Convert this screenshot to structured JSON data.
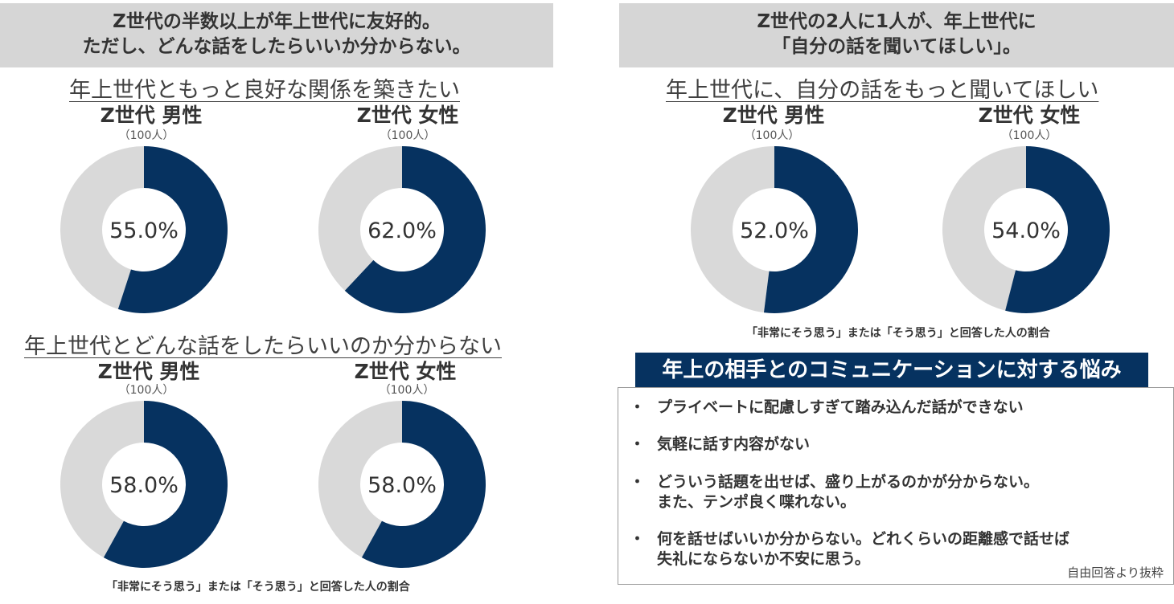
{
  "left": {
    "header": [
      "Z世代の半数以上が年上世代に友好的。",
      "ただし、どんな話をしたらいいか分からない。"
    ],
    "section1_title": "年上世代ともっと良好な関係を築きたい",
    "section2_title": "年上世代とどんな話をしたらいいのか分からない",
    "note": "「非常にそう思う」または「そう思う」と回答した人の割合"
  },
  "right": {
    "header": [
      "Z世代の2人に1人が、年上世代に",
      "「自分の話を聞いてほしい」。"
    ],
    "section_title": "年上世代に、自分の話をもっと聞いてほしい",
    "note": "「非常にそう思う」または「そう思う」と回答した人の割合",
    "concerns_title": "年上の相手とのコミュニケーションに対する悩み",
    "bullet": "・",
    "concerns": [
      [
        "プライベートに配慮しすぎて踏み込んだ話ができない"
      ],
      [
        "気軽に話す内容がない"
      ],
      [
        "どういう話題を出せば、盛り上がるのかが分からない。",
        "また、テンポ良く喋れない。"
      ],
      [
        "何を話せばいいか分からない。どれくらいの距離感で話せば",
        "失礼にならないか不安に思う。"
      ]
    ],
    "footnote": "自由回答より抜粋"
  },
  "colors": {
    "navy": "#063260",
    "gray": "#d9d9d9",
    "header_bg": "#d6d6d6"
  },
  "chart_data": [
    {
      "type": "pie",
      "variant": "donut",
      "title": "年上世代ともっと良好な関係を築きたい",
      "group": "Z世代 男性",
      "n": "（100人）",
      "value": 55.0,
      "label": "55.0%"
    },
    {
      "type": "pie",
      "variant": "donut",
      "title": "年上世代ともっと良好な関係を築きたい",
      "group": "Z世代 女性",
      "n": "（100人）",
      "value": 62.0,
      "label": "62.0%"
    },
    {
      "type": "pie",
      "variant": "donut",
      "title": "年上世代とどんな話をしたらいいのか分からない",
      "group": "Z世代 男性",
      "n": "（100人）",
      "value": 58.0,
      "label": "58.0%"
    },
    {
      "type": "pie",
      "variant": "donut",
      "title": "年上世代とどんな話をしたらいいのか分からない",
      "group": "Z世代 女性",
      "n": "（100人）",
      "value": 58.0,
      "label": "58.0%"
    },
    {
      "type": "pie",
      "variant": "donut",
      "title": "年上世代に、自分の話をもっと聞いてほしい",
      "group": "Z世代 男性",
      "n": "（100人）",
      "value": 52.0,
      "label": "52.0%"
    },
    {
      "type": "pie",
      "variant": "donut",
      "title": "年上世代に、自分の話をもっと聞いてほしい",
      "group": "Z世代 女性",
      "n": "（100人）",
      "value": 54.0,
      "label": "54.0%"
    }
  ]
}
